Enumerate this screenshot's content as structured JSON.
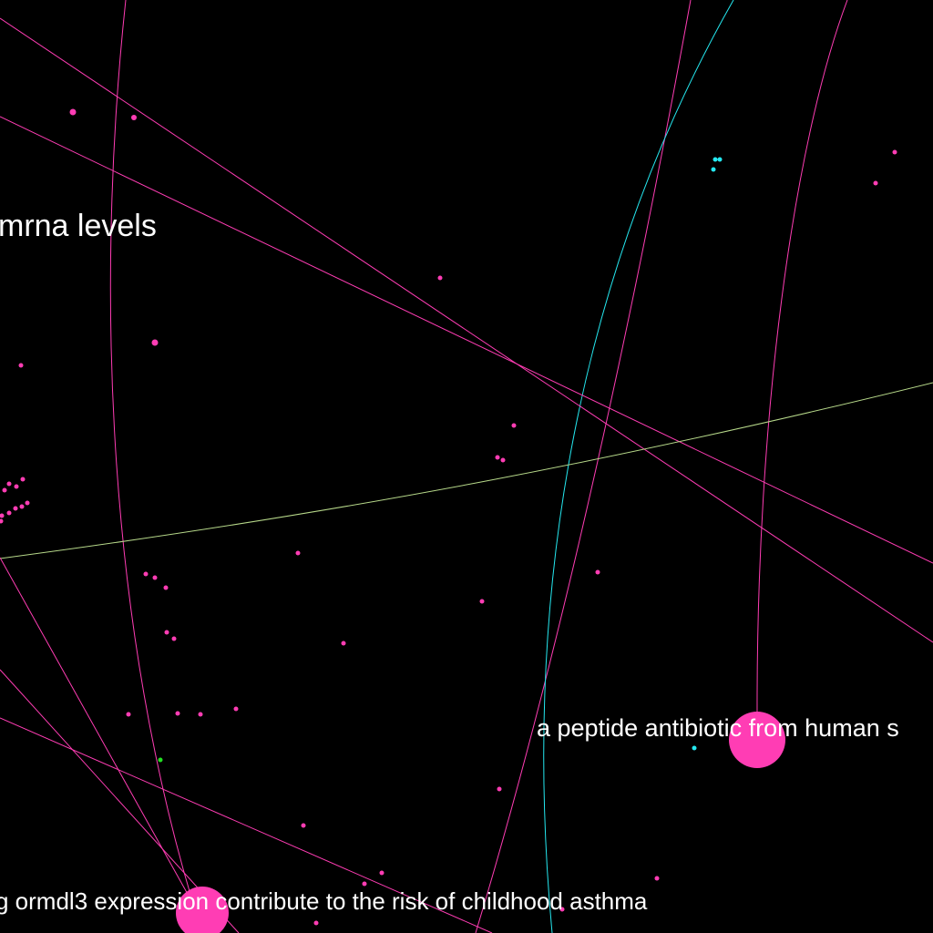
{
  "graph": {
    "background_color": "#000000",
    "colors": {
      "pink": "#ff3db4",
      "cyan": "#25e8f0",
      "green": "#22e022",
      "olive": "#b7d98a",
      "label": "#ffffff"
    },
    "labels": {
      "top_left": "mrna levels",
      "middle_right": "a peptide antibiotic from human s",
      "bottom": "g ormdl3 expression contribute to the risk of childhood asthma"
    }
  }
}
